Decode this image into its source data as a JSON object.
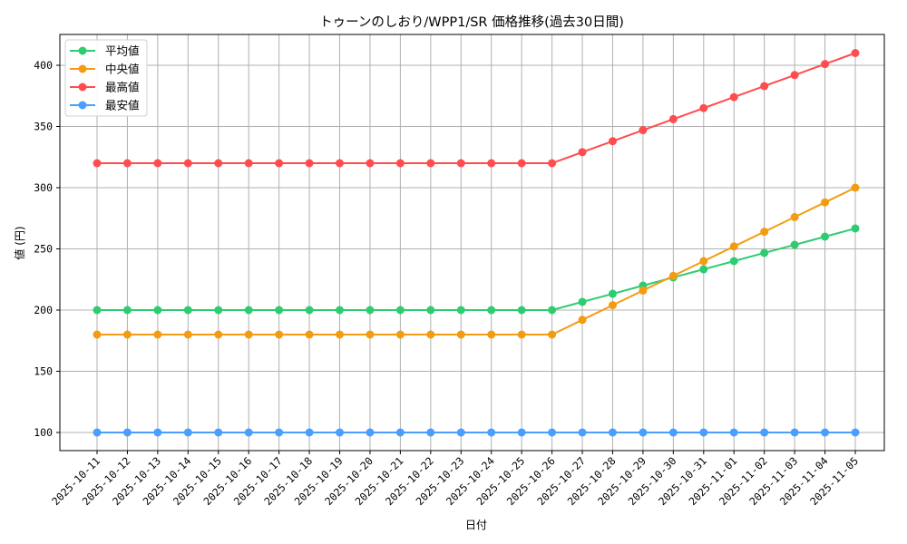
{
  "chart_data": {
    "type": "line",
    "title": "トゥーンのしおり/WPP1/SR 価格推移(過去30日間)",
    "xlabel": "日付",
    "ylabel": "値 (円)",
    "ylim": [
      85,
      425
    ],
    "yticks": [
      100,
      150,
      200,
      250,
      300,
      350,
      400
    ],
    "grid": true,
    "legend_position": "upper left",
    "categories": [
      "2025-10-11",
      "2025-10-12",
      "2025-10-13",
      "2025-10-14",
      "2025-10-15",
      "2025-10-16",
      "2025-10-17",
      "2025-10-18",
      "2025-10-19",
      "2025-10-20",
      "2025-10-21",
      "2025-10-22",
      "2025-10-23",
      "2025-10-24",
      "2025-10-25",
      "2025-10-26",
      "2025-10-27",
      "2025-10-28",
      "2025-10-29",
      "2025-10-30",
      "2025-10-31",
      "2025-11-01",
      "2025-11-02",
      "2025-11-03",
      "2025-11-04",
      "2025-11-05"
    ],
    "series": [
      {
        "name": "平均値",
        "color": "#2ecc71",
        "values": [
          200,
          200,
          200,
          200,
          200,
          200,
          200,
          200,
          200,
          200,
          200,
          200,
          200,
          200,
          200,
          200,
          206.7,
          213.3,
          220,
          226.7,
          233.3,
          240,
          246.7,
          253.3,
          260,
          266.7
        ]
      },
      {
        "name": "中央値",
        "color": "#f39c12",
        "values": [
          180,
          180,
          180,
          180,
          180,
          180,
          180,
          180,
          180,
          180,
          180,
          180,
          180,
          180,
          180,
          180,
          192,
          204,
          216,
          228,
          240,
          252,
          264,
          276,
          288,
          300
        ]
      },
      {
        "name": "最高値",
        "color": "#ff4d4f",
        "values": [
          320,
          320,
          320,
          320,
          320,
          320,
          320,
          320,
          320,
          320,
          320,
          320,
          320,
          320,
          320,
          320,
          329,
          338,
          347,
          356,
          365,
          374,
          383,
          392,
          401,
          410
        ]
      },
      {
        "name": "最安値",
        "color": "#4a9eff",
        "values": [
          100,
          100,
          100,
          100,
          100,
          100,
          100,
          100,
          100,
          100,
          100,
          100,
          100,
          100,
          100,
          100,
          100,
          100,
          100,
          100,
          100,
          100,
          100,
          100,
          100,
          100
        ]
      }
    ]
  }
}
